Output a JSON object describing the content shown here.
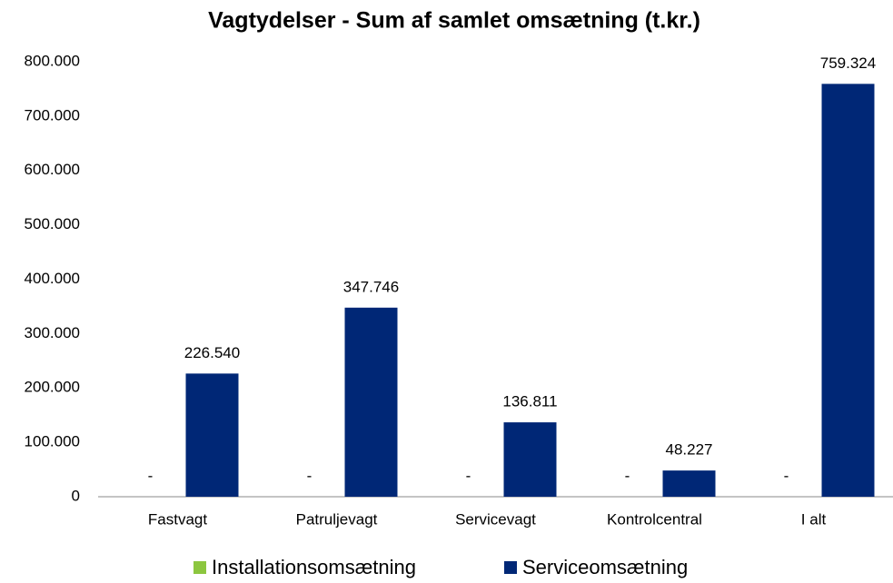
{
  "chart_data": {
    "type": "bar",
    "title": "Vagtydelser - Sum af samlet omsætning (t.kr.)",
    "categories": [
      "Fastvagt",
      "Patruljevagt",
      "Servicevagt",
      "Kontrolcentral",
      "I alt"
    ],
    "series": [
      {
        "name": "Installationsomsætning",
        "color": "#8cc63f",
        "values": [
          0,
          0,
          0,
          0,
          0
        ],
        "value_labels": [
          "-",
          "-",
          "-",
          "-",
          "-"
        ]
      },
      {
        "name": "Serviceomsætning",
        "color": "#002776",
        "values": [
          226540,
          347746,
          136811,
          48227,
          759324
        ],
        "value_labels": [
          "226.540",
          "347.746",
          "136.811",
          "48.227",
          "759.324"
        ]
      }
    ],
    "ylim": [
      0,
      800000
    ],
    "yticks": [
      0,
      {
        "value": 100000,
        "label": "100.000"
      },
      {
        "value": 200000,
        "label": "200.000"
      },
      {
        "value": 300000,
        "label": "300.000"
      },
      {
        "value": 400000,
        "label": "400.000"
      },
      {
        "value": 500000,
        "label": "500.000"
      },
      {
        "value": 600000,
        "label": "600.000"
      },
      {
        "value": 700000,
        "label": "700.000"
      },
      {
        "value": 800000,
        "label": "800.000"
      }
    ],
    "grid": false,
    "legend": "bottom"
  }
}
